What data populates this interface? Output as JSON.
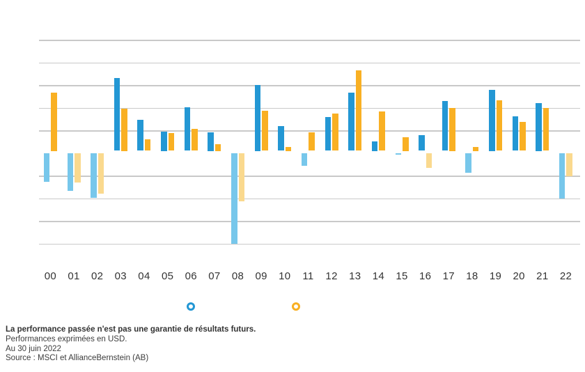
{
  "chart_data": {
    "type": "bar",
    "title": "",
    "xlabel": "",
    "ylabel": "",
    "categories": [
      "00",
      "01",
      "02",
      "03",
      "04",
      "05",
      "06",
      "07",
      "08",
      "09",
      "10",
      "11",
      "12",
      "13",
      "14",
      "15",
      "16",
      "17",
      "18",
      "19",
      "20",
      "21",
      "22"
    ],
    "series": [
      {
        "name": "series-blue",
        "color_positive": "#2397d4",
        "color_negative": "#77c7eb",
        "values": [
          -12.9,
          -16.8,
          -19.9,
          33.1,
          14.7,
          9.5,
          20.1,
          9.0,
          -40.3,
          30.0,
          11.8,
          -5.8,
          15.8,
          26.7,
          5.0,
          -0.9,
          7.9,
          22.9,
          -8.7,
          28.0,
          16.2,
          22.0,
          -20.3
        ]
      },
      {
        "name": "series-orange",
        "color_positive": "#f9b023",
        "color_negative": "#fad98e",
        "values": [
          26.5,
          -13.0,
          -18.0,
          19.5,
          6.1,
          8.7,
          10.7,
          4.0,
          -21.3,
          18.7,
          2.5,
          9.2,
          17.4,
          36.6,
          18.2,
          7.0,
          -6.7,
          20.0,
          2.5,
          23.2,
          13.6,
          19.8,
          -10.2
        ]
      }
    ],
    "ylim": [
      -45,
      55
    ],
    "gridline_values": [
      50,
      40,
      30,
      20,
      10,
      -10,
      -20,
      -30,
      -40
    ],
    "grid": "horizontal-only",
    "y_axis_labels_visible": false,
    "legend_position": "bottom",
    "legend_labels_visible": false,
    "legend_markers": [
      "blue-ring",
      "orange-ring"
    ]
  },
  "footer": {
    "line1": "La performance passée n'est pas une garantie de résultats futurs.",
    "line2": "Performances exprimées en USD.",
    "line3": "Au 30 juin 2022",
    "line4": "Source : MSCI et AllianceBernstein (AB)"
  },
  "colors": {
    "background": "#ffffff",
    "gridline": "#c9c9c9",
    "axis_label_text": "#333333",
    "footer_text": "#3c3c3c",
    "series_blue": "#2397d4",
    "series_blue_negative": "#77c7eb",
    "series_orange": "#f9b023",
    "series_orange_negative": "#fad98e"
  }
}
